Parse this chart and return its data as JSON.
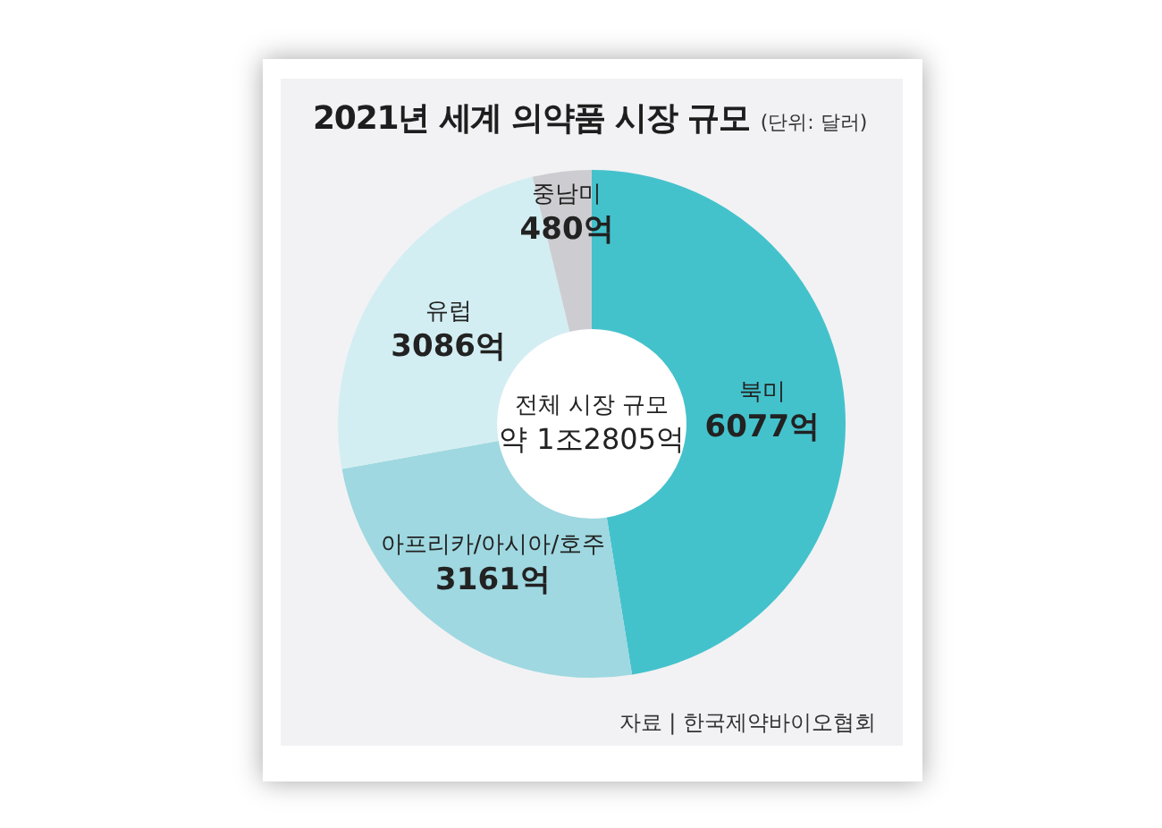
{
  "chart_data": {
    "type": "donut",
    "title": "2021년 세계 의약품 시장 규모",
    "subtitle": "(단위: 달러)",
    "categories": [
      "북미",
      "아프리카/아시아/호주",
      "유럽",
      "중남미"
    ],
    "values": [
      6077,
      3161,
      3086,
      480
    ],
    "colors": [
      "#44c2cc",
      "#9fd8e0",
      "#d3eef2",
      "#cdcdd1"
    ],
    "value_labels": [
      "6077억",
      "3161억",
      "3086억",
      "480억"
    ],
    "annotations": [
      "전체 시장 규모",
      "약 1조2805억",
      "자료 | 한국제약바이오협회"
    ]
  }
}
